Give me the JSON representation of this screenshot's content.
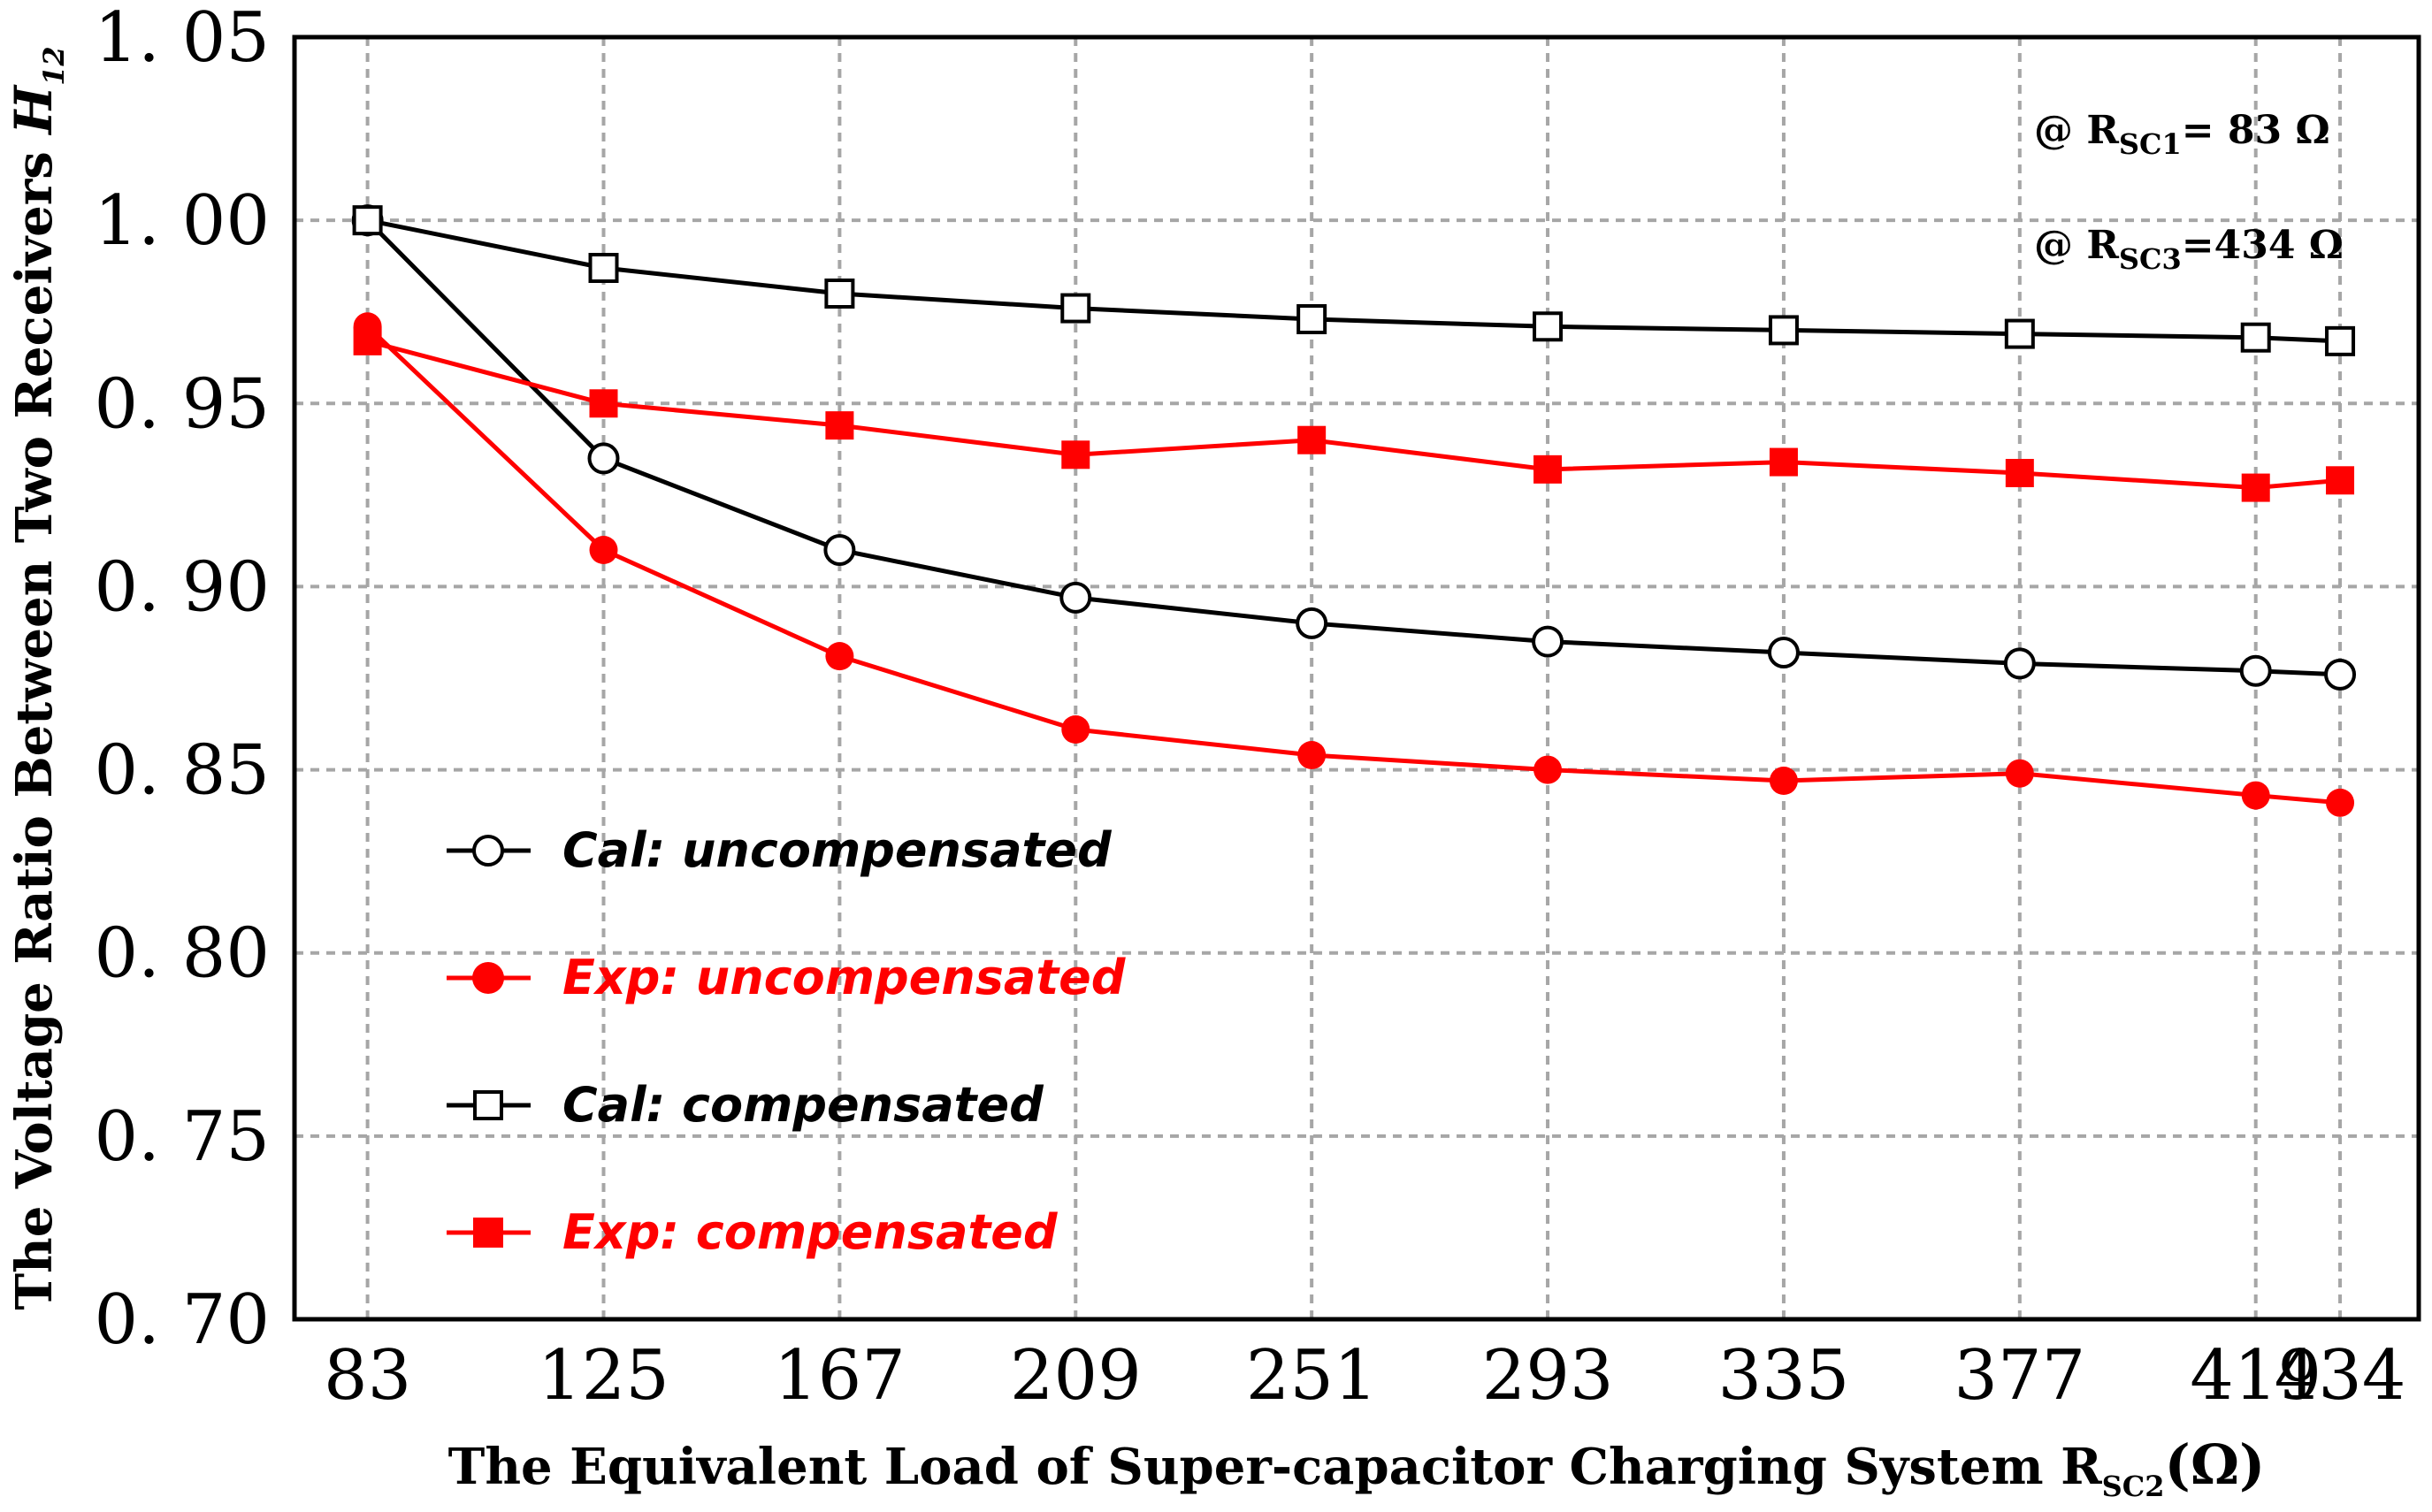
{
  "chart_data": {
    "type": "line",
    "title": "",
    "xlabel": "The Equivalent Load of Super-capacitor Charging System R",
    "xlabel_sub": "SC2",
    "xlabel_unit": "(Ω)",
    "ylabel": "The Voltage Ratio Between Two Receivers ",
    "ylabel_symbol": "H",
    "ylabel_symbol_sub": "12",
    "categories": [
      "83",
      "125",
      "167",
      "209",
      "251",
      "293",
      "335",
      "377",
      "419",
      "434"
    ],
    "x": [
      83,
      125,
      167,
      209,
      251,
      293,
      335,
      377,
      419,
      434
    ],
    "xlim": [
      70,
      448
    ],
    "ylim": [
      0.7,
      1.05
    ],
    "yticks": [
      0.7,
      0.75,
      0.8,
      0.85,
      0.9,
      0.95,
      1.0,
      1.05
    ],
    "ytick_labels": [
      "0. 70",
      "0. 75",
      "0. 80",
      "0. 85",
      "0. 90",
      "0. 95",
      "1. 00",
      "1. 05"
    ],
    "grid": true,
    "legend_position": "bottom-left",
    "series": [
      {
        "name": "Cal: uncompensated",
        "color": "#000000",
        "marker": "circle-open",
        "values": [
          1.0,
          0.935,
          0.91,
          0.897,
          0.89,
          0.885,
          0.882,
          0.879,
          0.877,
          0.876
        ]
      },
      {
        "name": "Exp: uncompensated",
        "color": "#ff0000",
        "marker": "circle-filled",
        "values": [
          0.971,
          0.91,
          0.881,
          0.861,
          0.854,
          0.85,
          0.847,
          0.849,
          0.843,
          0.841
        ]
      },
      {
        "name": "Cal: compensated",
        "color": "#000000",
        "marker": "square-open",
        "values": [
          1.0,
          0.987,
          0.98,
          0.976,
          0.973,
          0.971,
          0.97,
          0.969,
          0.968,
          0.967
        ]
      },
      {
        "name": "Exp: compensated",
        "color": "#ff0000",
        "marker": "square-filled",
        "values": [
          0.967,
          0.95,
          0.944,
          0.936,
          0.94,
          0.932,
          0.934,
          0.931,
          0.927,
          0.929
        ]
      }
    ],
    "annotations": [
      {
        "prefix": "@ R",
        "sub": "SC1",
        "suffix": "= 83  Ω"
      },
      {
        "prefix": "@ R",
        "sub": "SC3",
        "suffix": "=434 Ω"
      }
    ]
  }
}
